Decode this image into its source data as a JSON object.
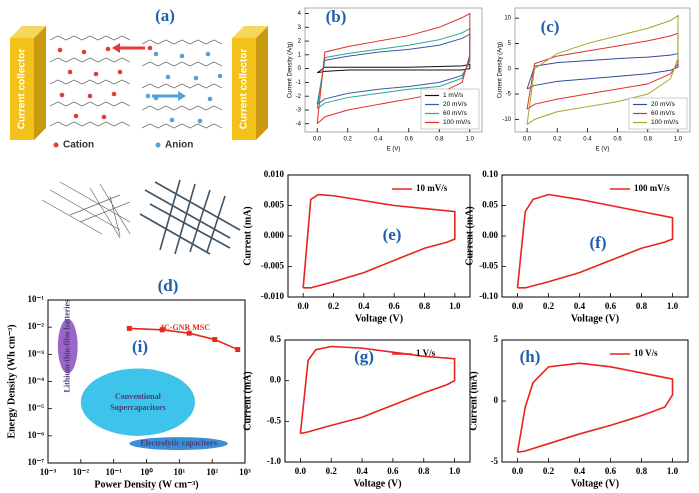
{
  "panel_a": {
    "label": "(a)",
    "left_collector": "Current collector",
    "right_collector": "Current collector",
    "legend": [
      "Cation",
      "Anion"
    ]
  },
  "panel_d": {
    "label": "(d)"
  },
  "chart_data": [
    {
      "type": "line",
      "panel_label": "(b)",
      "x_label": "E (V)",
      "y_label": "Current Density (A/g)",
      "x": [
        0,
        0.05,
        0.2,
        0.4,
        0.6,
        0.8,
        0.95,
        1,
        1,
        0.95,
        0.8,
        0.6,
        0.4,
        0.2,
        0.05,
        0
      ],
      "series": [
        {
          "name": "1 mV/s",
          "color": "#111111",
          "values": [
            -0.3,
            0.1,
            0.1,
            0.1,
            0.1,
            0.15,
            0.2,
            0.3,
            0.0,
            -0.1,
            -0.1,
            -0.1,
            -0.1,
            -0.1,
            -0.2,
            -0.3
          ]
        },
        {
          "name": "20 mV/s",
          "color": "#3a5aa8",
          "values": [
            -2.6,
            0.6,
            0.9,
            1.2,
            1.4,
            1.7,
            2.2,
            2.5,
            0.5,
            -0.5,
            -1.0,
            -1.3,
            -1.5,
            -1.8,
            -2.2,
            -2.6
          ]
        },
        {
          "name": "60 mV/s",
          "color": "#2aa58f",
          "values": [
            -2.9,
            0.8,
            1.1,
            1.4,
            1.7,
            2.1,
            2.6,
            2.9,
            0.7,
            -0.7,
            -1.3,
            -1.5,
            -1.8,
            -2.1,
            -2.5,
            -2.9
          ]
        },
        {
          "name": "100 mV/s",
          "color": "#e0302a",
          "values": [
            -4,
            1.2,
            1.6,
            2.0,
            2.4,
            3.0,
            3.7,
            4.0,
            1.0,
            -1.0,
            -1.8,
            -2.2,
            -2.6,
            -3.0,
            -3.5,
            -4
          ]
        }
      ],
      "xlim": [
        -0.08,
        1.08
      ],
      "ylim": [
        -4.6,
        4.4
      ],
      "xticks": [
        {
          "value": 0,
          "label": "0.0"
        },
        {
          "value": 0.2,
          "label": "0.2"
        },
        {
          "value": 0.4,
          "label": "0.4"
        },
        {
          "value": 0.6,
          "label": "0.6"
        },
        {
          "value": 0.8,
          "label": "0.8"
        },
        {
          "value": 1,
          "label": "1.0"
        }
      ],
      "yticks": [
        -4,
        -3,
        -2,
        -1,
        0,
        1,
        2,
        3,
        4
      ],
      "legend": "lower right",
      "legend_frame": true
    },
    {
      "type": "line",
      "panel_label": "(c)",
      "x_label": "E (V)",
      "y_label": "Current Density (A/g)",
      "x": [
        0,
        0.05,
        0.2,
        0.4,
        0.6,
        0.8,
        0.95,
        1,
        1,
        0.95,
        0.8,
        0.6,
        0.4,
        0.2,
        0.05,
        0
      ],
      "series": [
        {
          "name": "20 mV/s",
          "color": "#2f4f9a",
          "values": [
            -4,
            0.5,
            1.2,
            1.6,
            2,
            2.3,
            2.7,
            3,
            0.3,
            -0.3,
            -1,
            -1.5,
            -2,
            -2.5,
            -3.3,
            -4
          ]
        },
        {
          "name": "60 mV/s",
          "color": "#e0302a",
          "values": [
            -8,
            1,
            2.5,
            3.5,
            4.5,
            5.5,
            6.5,
            7,
            1,
            -1,
            -3,
            -4,
            -5,
            -6,
            -7,
            -8
          ]
        },
        {
          "name": "100 mV/s",
          "color": "#9aab2a",
          "values": [
            -11,
            0,
            3,
            5,
            6.5,
            8,
            9.5,
            10.5,
            2,
            -2,
            -5,
            -6.5,
            -7.5,
            -8.5,
            -10,
            -11
          ]
        }
      ],
      "xlim": [
        -0.08,
        1.08
      ],
      "ylim": [
        -12.5,
        12
      ],
      "xticks": [
        {
          "value": 0,
          "label": "0.0"
        },
        {
          "value": 0.2,
          "label": "0.2"
        },
        {
          "value": 0.4,
          "label": "0.4"
        },
        {
          "value": 0.6,
          "label": "0.6"
        },
        {
          "value": 0.8,
          "label": "0.8"
        },
        {
          "value": 1,
          "label": "1.0"
        }
      ],
      "yticks": [
        -10,
        -5,
        0,
        5,
        10
      ],
      "legend": "lower right",
      "legend_frame": true
    },
    {
      "type": "line",
      "panel_label": "(e)",
      "x_label": "Voltage (V)",
      "y_label": "Current (mA)",
      "x": [
        0,
        0.05,
        0.1,
        0.2,
        0.4,
        0.6,
        0.8,
        1,
        1,
        0.95,
        0.8,
        0.6,
        0.4,
        0.2,
        0.05,
        0
      ],
      "series": [
        {
          "name": "10 mV/s",
          "color": "#e8231d",
          "values": [
            -0.0085,
            0.006,
            0.0068,
            0.0066,
            0.0058,
            0.005,
            0.0045,
            0.004,
            -0.0005,
            -0.001,
            -0.002,
            -0.004,
            -0.006,
            -0.0075,
            -0.0085,
            -0.0085
          ]
        }
      ],
      "xlim": [
        -0.1,
        1.1
      ],
      "ylim": [
        -0.01,
        0.01
      ],
      "xticks": [
        {
          "value": 0,
          "label": "0.0"
        },
        {
          "value": 0.2,
          "label": "0.2"
        },
        {
          "value": 0.4,
          "label": "0.4"
        },
        {
          "value": 0.6,
          "label": "0.6"
        },
        {
          "value": 0.8,
          "label": "0.8"
        },
        {
          "value": 1,
          "label": "1.0"
        }
      ],
      "yticks": [
        {
          "value": -0.01,
          "label": "-0.010"
        },
        {
          "value": -0.005,
          "label": "-0.005"
        },
        {
          "value": 0,
          "label": "0.000"
        },
        {
          "value": 0.005,
          "label": "0.005"
        },
        {
          "value": 0.01,
          "label": "0.010"
        }
      ],
      "legend": "upper right",
      "legend_frame": false
    },
    {
      "type": "line",
      "panel_label": "(f)",
      "x_label": "Voltage (V)",
      "y_label": "Current (mA)",
      "x": [
        0,
        0.05,
        0.1,
        0.2,
        0.4,
        0.6,
        0.8,
        1,
        1,
        0.95,
        0.8,
        0.6,
        0.4,
        0.2,
        0.05,
        0
      ],
      "series": [
        {
          "name": "100 mV/s",
          "color": "#e8231d",
          "values": [
            -0.085,
            0.04,
            0.06,
            0.068,
            0.06,
            0.05,
            0.04,
            0.03,
            -0.005,
            -0.01,
            -0.02,
            -0.04,
            -0.06,
            -0.075,
            -0.085,
            -0.085
          ]
        }
      ],
      "xlim": [
        -0.1,
        1.1
      ],
      "ylim": [
        -0.1,
        0.1
      ],
      "xticks": [
        {
          "value": 0,
          "label": "0.0"
        },
        {
          "value": 0.2,
          "label": "0.2"
        },
        {
          "value": 0.4,
          "label": "0.4"
        },
        {
          "value": 0.6,
          "label": "0.6"
        },
        {
          "value": 0.8,
          "label": "0.8"
        },
        {
          "value": 1,
          "label": "1.0"
        }
      ],
      "yticks": [
        {
          "value": -0.1,
          "label": "-0.10"
        },
        {
          "value": -0.05,
          "label": "-0.05"
        },
        {
          "value": 0,
          "label": "0.00"
        },
        {
          "value": 0.05,
          "label": "0.05"
        },
        {
          "value": 0.1,
          "label": "0.10"
        }
      ],
      "legend": "upper right",
      "legend_frame": false
    },
    {
      "type": "line",
      "panel_label": "(g)",
      "x_label": "Voltage (V)",
      "y_label": "Current (mA)",
      "x": [
        0,
        0.05,
        0.1,
        0.2,
        0.4,
        0.6,
        0.8,
        1,
        1,
        0.95,
        0.8,
        0.6,
        0.4,
        0.2,
        0.05,
        0
      ],
      "series": [
        {
          "name": "1 V/s",
          "color": "#e8231d",
          "values": [
            -0.65,
            0.25,
            0.38,
            0.42,
            0.4,
            0.35,
            0.3,
            0.27,
            0.0,
            -0.05,
            -0.15,
            -0.3,
            -0.45,
            -0.55,
            -0.63,
            -0.65
          ]
        }
      ],
      "xlim": [
        -0.1,
        1.1
      ],
      "ylim": [
        -1,
        0.5
      ],
      "xticks": [
        {
          "value": 0,
          "label": "0.0"
        },
        {
          "value": 0.2,
          "label": "0.2"
        },
        {
          "value": 0.4,
          "label": "0.4"
        },
        {
          "value": 0.6,
          "label": "0.6"
        },
        {
          "value": 0.8,
          "label": "0.8"
        },
        {
          "value": 1,
          "label": "1.0"
        }
      ],
      "yticks": [
        {
          "value": -1,
          "label": "-1.0"
        },
        {
          "value": -0.5,
          "label": "-0.5"
        },
        {
          "value": 0,
          "label": "0.0"
        },
        {
          "value": 0.5,
          "label": "0.5"
        }
      ],
      "legend": "upper right",
      "legend_frame": false
    },
    {
      "type": "line",
      "panel_label": "(h)",
      "x_label": "Voltage (V)",
      "y_label": "Current (mA)",
      "x": [
        0,
        0.05,
        0.1,
        0.2,
        0.4,
        0.6,
        0.8,
        1,
        1,
        0.95,
        0.8,
        0.6,
        0.4,
        0.2,
        0.05,
        0
      ],
      "series": [
        {
          "name": "10 V/s",
          "color": "#e8231d",
          "values": [
            -4.2,
            -0.5,
            1.5,
            2.8,
            3.1,
            2.8,
            2.3,
            1.8,
            0.5,
            -0.5,
            -1.2,
            -2.0,
            -2.7,
            -3.5,
            -4.1,
            -4.2
          ]
        }
      ],
      "xlim": [
        -0.1,
        1.1
      ],
      "ylim": [
        -5,
        5
      ],
      "xticks": [
        {
          "value": 0,
          "label": "0.0"
        },
        {
          "value": 0.2,
          "label": "0.2"
        },
        {
          "value": 0.4,
          "label": "0.4"
        },
        {
          "value": 0.6,
          "label": "0.6"
        },
        {
          "value": 0.8,
          "label": "0.8"
        },
        {
          "value": 1,
          "label": "1.0"
        }
      ],
      "yticks": [
        -5,
        0,
        5
      ],
      "legend": "upper right",
      "legend_frame": false
    },
    {
      "type": "line",
      "panel_label": "(i)",
      "x_label": "Power Density (W cm⁻³)",
      "y_label": "Energy Density (Wh cm⁻³)",
      "log_scale": true,
      "x": [
        0.3,
        3,
        20,
        120,
        600
      ],
      "series": [
        {
          "name": "4C-GNR MSC",
          "color": "#e8291c",
          "values": [
            0.009,
            0.008,
            0.006,
            0.0035,
            0.0015
          ]
        }
      ],
      "regions": [
        {
          "name": "Lithium-thin-film batteries",
          "color": "#9a66c8",
          "x": [
            0.002,
            0.008
          ],
          "y": [
            0.0002,
            0.02
          ]
        },
        {
          "name": "Conventional Supercapacitors",
          "color": "#3ec3ea",
          "x": [
            0.01,
            30
          ],
          "y": [
            1e-06,
            0.0003
          ]
        },
        {
          "name": "Electrolytic capacitors",
          "color": "#3a8fd6",
          "x": [
            0.3,
            300
          ],
          "y": [
            3e-07,
            9e-07
          ]
        }
      ],
      "xlim": [
        0.001,
        1000
      ],
      "ylim": [
        1e-07,
        0.1
      ],
      "xticks": [
        {
          "value": 0.001,
          "label": "10⁻³"
        },
        {
          "value": 0.01,
          "label": "10⁻²"
        },
        {
          "value": 0.1,
          "label": "10⁻¹"
        },
        {
          "value": 1,
          "label": "10⁰"
        },
        {
          "value": 10,
          "label": "10¹"
        },
        {
          "value": 100,
          "label": "10²"
        },
        {
          "value": 1000,
          "label": "10³"
        }
      ],
      "yticks": [
        {
          "value": 1e-07,
          "label": "10⁻⁷"
        },
        {
          "value": 1e-06,
          "label": "10⁻⁶"
        },
        {
          "value": 1e-05,
          "label": "10⁻⁵"
        },
        {
          "value": 0.0001,
          "label": "10⁻⁴"
        },
        {
          "value": 0.001,
          "label": "10⁻³"
        },
        {
          "value": 0.01,
          "label": "10⁻²"
        },
        {
          "value": 0.1,
          "label": "10⁻¹"
        }
      ],
      "legend": "upper right",
      "legend_frame": false
    }
  ]
}
